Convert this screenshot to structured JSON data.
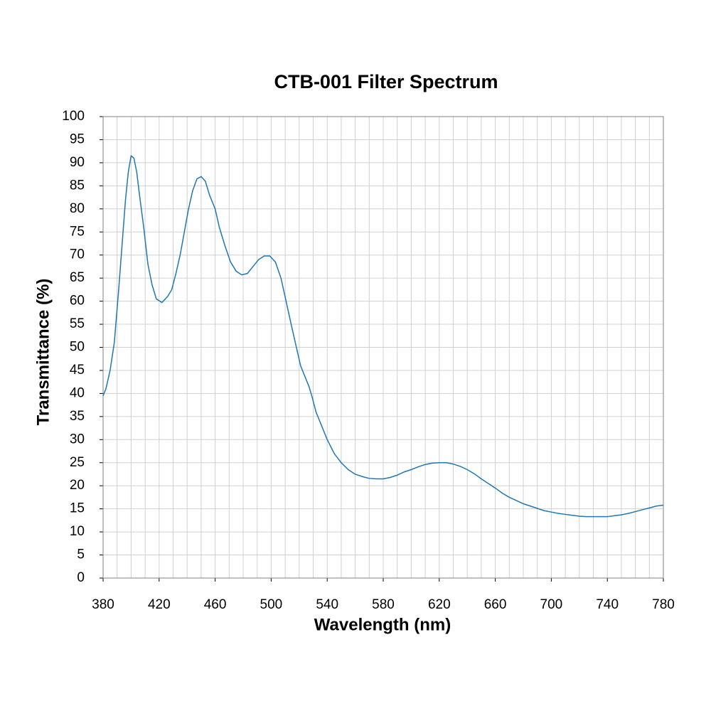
{
  "chart_data": {
    "type": "line",
    "title": "CTB-001 Filter Spectrum",
    "xlabel": "Wavelength (nm)",
    "ylabel": "Transmittance (%)",
    "x": [
      380,
      382,
      385,
      388,
      391,
      394,
      396,
      398,
      400,
      402,
      404,
      406,
      409,
      412,
      415,
      418,
      422,
      426,
      429,
      432,
      435,
      438,
      441,
      444,
      447,
      450,
      453,
      456,
      460,
      463,
      467,
      471,
      475,
      479,
      483,
      487,
      491,
      495,
      499,
      503,
      507,
      511,
      515,
      518,
      521,
      525,
      527,
      529,
      532,
      536,
      540,
      545,
      550,
      555,
      560,
      565,
      570,
      575,
      580,
      585,
      590,
      595,
      600,
      605,
      610,
      615,
      620,
      625,
      630,
      635,
      640,
      645,
      650,
      655,
      660,
      665,
      670,
      675,
      680,
      685,
      690,
      695,
      700,
      705,
      710,
      715,
      720,
      725,
      730,
      735,
      740,
      745,
      750,
      755,
      760,
      765,
      770,
      775,
      780
    ],
    "series": [
      {
        "name": "Transmittance",
        "color": "#1f77b4",
        "values": [
          39.5,
          41,
          45,
          51,
          62,
          74,
          82,
          88,
          91.5,
          91,
          88,
          83,
          76,
          68,
          63.5,
          60.5,
          59.7,
          61,
          62.5,
          66,
          70,
          75,
          80,
          84,
          86.5,
          87,
          86,
          83,
          80,
          76,
          72,
          68.5,
          66.5,
          65.7,
          66,
          67.5,
          69,
          69.8,
          69.8,
          68.5,
          65,
          59.5,
          54,
          50,
          46,
          43,
          41.5,
          39.5,
          36,
          33,
          30,
          27,
          25,
          23.5,
          22.5,
          22,
          21.6,
          21.5,
          21.5,
          21.8,
          22.3,
          23,
          23.5,
          24.1,
          24.6,
          24.9,
          25,
          25,
          24.7,
          24.2,
          23.5,
          22.6,
          21.5,
          20.5,
          19.5,
          18.4,
          17.5,
          16.8,
          16.1,
          15.6,
          15.1,
          14.6,
          14.3,
          14,
          13.8,
          13.6,
          13.4,
          13.3,
          13.3,
          13.3,
          13.3,
          13.5,
          13.7,
          14,
          14.4,
          14.8,
          15.2,
          15.6,
          15.8
        ]
      }
    ],
    "xlim": [
      380,
      780
    ],
    "xticks": [
      380,
      420,
      460,
      500,
      540,
      580,
      620,
      660,
      700,
      740,
      780
    ],
    "ylim": [
      0,
      100
    ],
    "yticks": [
      0,
      5,
      10,
      15,
      20,
      25,
      30,
      35,
      40,
      45,
      50,
      55,
      60,
      65,
      70,
      75,
      80,
      85,
      90,
      95,
      100
    ],
    "grid": true
  }
}
